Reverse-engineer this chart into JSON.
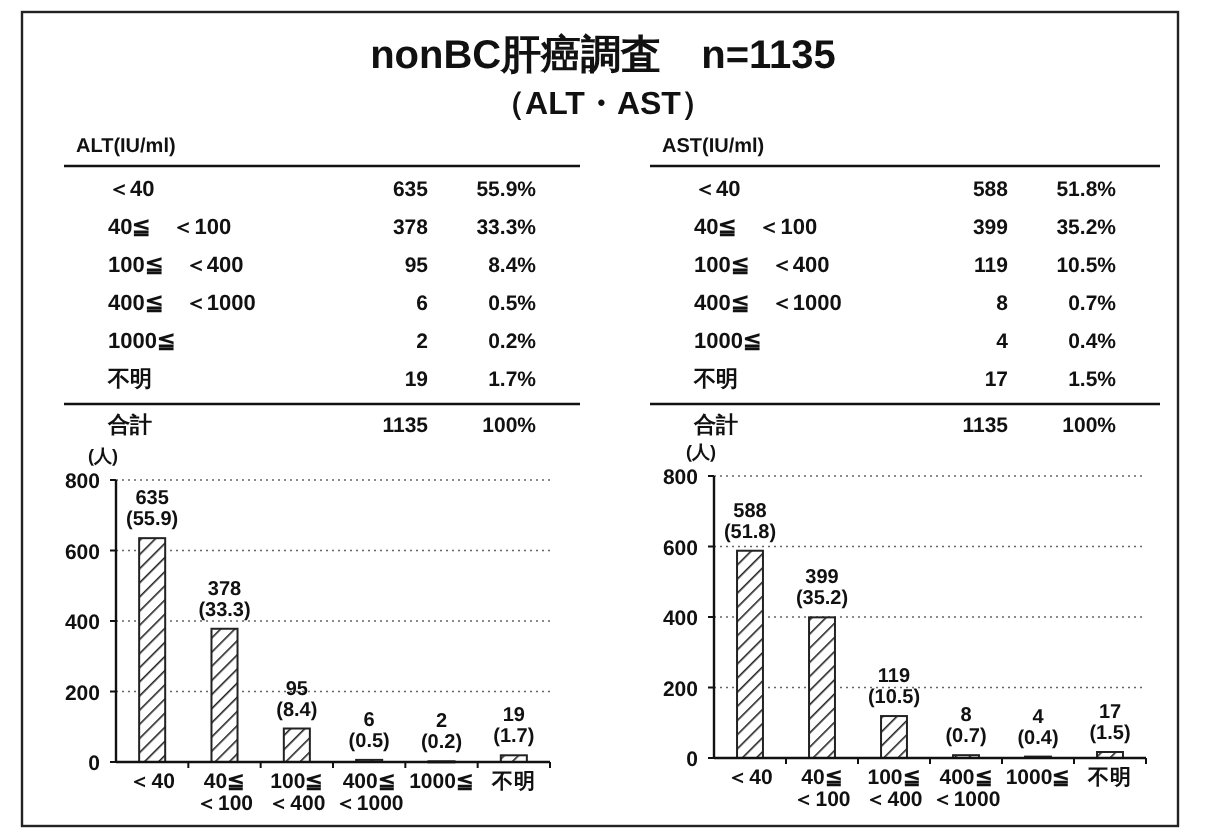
{
  "chart_data": [
    {
      "type": "other",
      "title": "nonBC肝癌調査　n=1135",
      "subtitle": "（ALT・AST）",
      "legend_title": "ALT(IU/ml)",
      "data_labels": true,
      "categories": [
        "＜40",
        "40≦　＜100",
        "100≦　＜400",
        "400≦　＜1000",
        "1000≦",
        "不明",
        "合計"
      ],
      "series": [
        {
          "values": [
            635,
            378,
            95,
            6,
            2,
            19,
            1135
          ]
        },
        {
          "values": [
            55.9,
            33.3,
            8.4,
            0.5,
            0.2,
            1.7,
            100
          ],
          "value_labels": [
            "55.9%",
            "33.3%",
            "8.4%",
            "0.5%",
            "0.2%",
            "1.7%",
            "100%"
          ]
        }
      ]
    },
    {
      "type": "other",
      "legend_title": "AST(IU/ml)",
      "data_labels": true,
      "categories": [
        "＜40",
        "40≦　＜100",
        "100≦　＜400",
        "400≦　＜1000",
        "1000≦",
        "不明",
        "合計"
      ],
      "series": [
        {
          "values": [
            588,
            399,
            119,
            8,
            4,
            17,
            1135
          ]
        },
        {
          "values": [
            51.8,
            35.2,
            10.5,
            0.7,
            0.4,
            1.5,
            100
          ],
          "value_labels": [
            "51.8%",
            "35.2%",
            "10.5%",
            "0.7%",
            "0.4%",
            "1.5%",
            "100%"
          ]
        }
      ]
    },
    {
      "type": "bar",
      "ylabel": "(人)",
      "categories": [
        "＜40",
        "40≦\n＜100",
        "100≦\n＜400",
        "400≦\n＜1000",
        "1000≦",
        "不明"
      ],
      "values": [
        635,
        378,
        95,
        6,
        2,
        19
      ],
      "color": "#222222",
      "value_labels": [
        "635\n(55.9)",
        "378\n(33.3)",
        "95\n(8.4)",
        "6\n(0.5)",
        "2\n(0.2)",
        "19\n(1.7)"
      ],
      "ylim": [
        0,
        800
      ],
      "yticks": [
        0,
        200,
        400,
        600,
        800
      ],
      "grid": "y"
    },
    {
      "type": "bar",
      "ylabel": "(人)",
      "categories": [
        "＜40",
        "40≦\n＜100",
        "100≦\n＜400",
        "400≦\n＜1000",
        "1000≦",
        "不明"
      ],
      "values": [
        588,
        399,
        119,
        8,
        4,
        17
      ],
      "color": "#222222",
      "value_labels": [
        "588\n(51.8)",
        "399\n(35.2)",
        "119\n(10.5)",
        "8\n(0.7)",
        "4\n(0.4)",
        "17\n(1.5)"
      ],
      "ylim": [
        0,
        800
      ],
      "yticks": [
        0,
        200,
        400,
        600,
        800
      ],
      "grid": "y"
    }
  ]
}
